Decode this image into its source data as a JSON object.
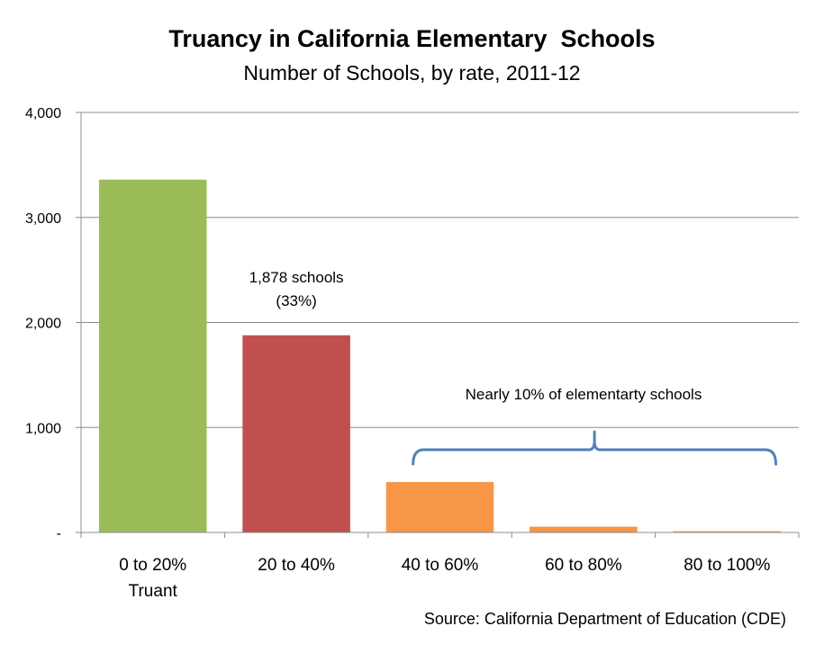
{
  "chart_data": {
    "type": "bar",
    "title": "Truancy in California Elementary  Schools",
    "subtitle": "Number of Schools, by rate, 2011-12",
    "categories": [
      [
        "0 to 20%",
        "Truant"
      ],
      [
        "20 to 40%"
      ],
      [
        "40 to 60%"
      ],
      [
        "60 to 80%"
      ],
      [
        "80 to 100%"
      ]
    ],
    "values": [
      3360,
      1878,
      480,
      55,
      12
    ],
    "colors": [
      "#9BBB59",
      "#C0504D",
      "#F79646",
      "#F79646",
      "#F79646"
    ],
    "ylim": [
      0,
      4000
    ],
    "yticks": [
      0,
      1000,
      2000,
      3000,
      4000
    ],
    "ytick_labels": [
      "-",
      "1,000",
      "2,000",
      "3,000",
      "4,000"
    ],
    "grid": true,
    "legend": "none",
    "annotations": {
      "bar_label": [
        "1,878 schools",
        "(33%)"
      ],
      "bracket_label": "Nearly 10% of elementarty schools",
      "bracket_color": "#4F81BD"
    },
    "source": "Source: California Department of Education (CDE)"
  }
}
